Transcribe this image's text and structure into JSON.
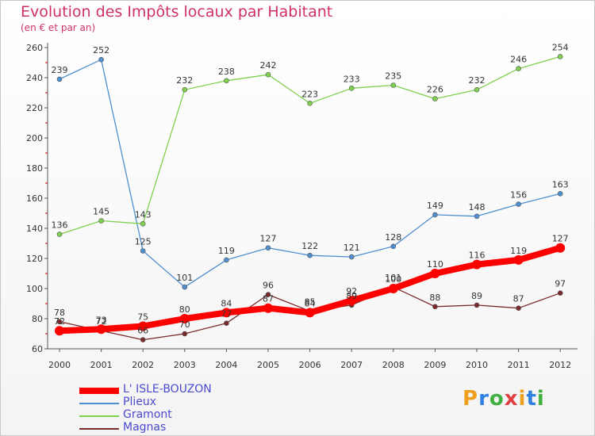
{
  "header": {
    "title": "Evolution des Impôts locaux par Habitant",
    "subtitle": "(en € et par an)"
  },
  "logo": {
    "text": "Proxiti",
    "colors": [
      "#f0a020",
      "#3080e0",
      "#40b040",
      "#e04040",
      "#f0a020",
      "#3080e0",
      "#40b040"
    ]
  },
  "chart_data": {
    "type": "line",
    "x": [
      "2000",
      "2001",
      "2002",
      "2003",
      "2004",
      "2005",
      "2006",
      "2007",
      "2008",
      "2009",
      "2010",
      "2011",
      "2012"
    ],
    "ylim": [
      60,
      260
    ],
    "yticks": [
      60,
      80,
      100,
      120,
      140,
      160,
      180,
      200,
      220,
      240,
      260
    ],
    "grid": false,
    "legend_position": "bottom-left",
    "series": [
      {
        "name": "L' ISLE-BOUZON",
        "color": "#ff0000",
        "values": [
          72,
          73,
          75,
          80,
          84,
          87,
          84,
          92,
          100,
          110,
          116,
          119,
          127
        ]
      },
      {
        "name": "Plieux",
        "color": "#4f8fd0",
        "values": [
          239,
          252,
          125,
          101,
          119,
          127,
          122,
          121,
          128,
          149,
          148,
          156,
          163
        ]
      },
      {
        "name": "Gramont",
        "color": "#7fd04f",
        "values": [
          136,
          145,
          143,
          232,
          238,
          242,
          223,
          233,
          235,
          226,
          232,
          246,
          254
        ]
      },
      {
        "name": "Magnas",
        "color": "#7a2a2a",
        "values": [
          78,
          72,
          66,
          70,
          77,
          96,
          85,
          89,
          101,
          88,
          89,
          87,
          97
        ]
      }
    ]
  }
}
